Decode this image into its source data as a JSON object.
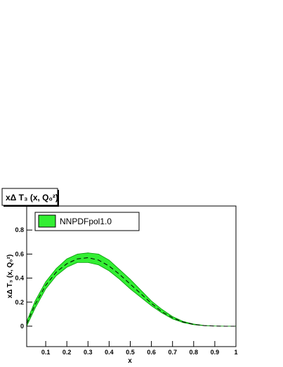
{
  "chart_data": {
    "type": "band",
    "title": "xΔ T₃ (x, Q₀²)",
    "x_label": "x",
    "y_label": "xΔ T₃ (x, Q₀²)",
    "x": [
      0.01,
      0.05,
      0.1,
      0.15,
      0.2,
      0.25,
      0.3,
      0.35,
      0.4,
      0.45,
      0.5,
      0.55,
      0.6,
      0.65,
      0.7,
      0.75,
      0.8,
      0.85,
      0.9,
      0.95,
      1.0
    ],
    "series": [
      {
        "name": "NNPDFpol1.0",
        "color": "#33ee33",
        "edge_color": "#009900",
        "values": [
          0.02,
          0.18,
          0.34,
          0.45,
          0.52,
          0.56,
          0.57,
          0.55,
          0.5,
          0.43,
          0.35,
          0.27,
          0.19,
          0.12,
          0.07,
          0.035,
          0.015,
          0.005,
          0.001,
          0,
          0
        ],
        "upper": [
          0.04,
          0.21,
          0.37,
          0.48,
          0.56,
          0.6,
          0.61,
          0.6,
          0.55,
          0.47,
          0.39,
          0.3,
          0.21,
          0.14,
          0.08,
          0.04,
          0.018,
          0.006,
          0.002,
          0,
          0
        ],
        "lower": [
          0.0,
          0.15,
          0.31,
          0.42,
          0.49,
          0.53,
          0.53,
          0.51,
          0.46,
          0.39,
          0.31,
          0.24,
          0.17,
          0.11,
          0.06,
          0.03,
          0.012,
          0.004,
          0.001,
          0,
          0
        ]
      }
    ],
    "xlim": [
      0.01,
      1.0
    ],
    "ylim": [
      -0.17,
      1.0
    ],
    "xticks": [
      0.1,
      0.2,
      0.3,
      0.4,
      0.5,
      0.6,
      0.7,
      0.8,
      0.9,
      1
    ],
    "yticks": [
      0,
      0.2,
      0.4,
      0.6,
      0.8
    ],
    "legend": "top-left"
  }
}
